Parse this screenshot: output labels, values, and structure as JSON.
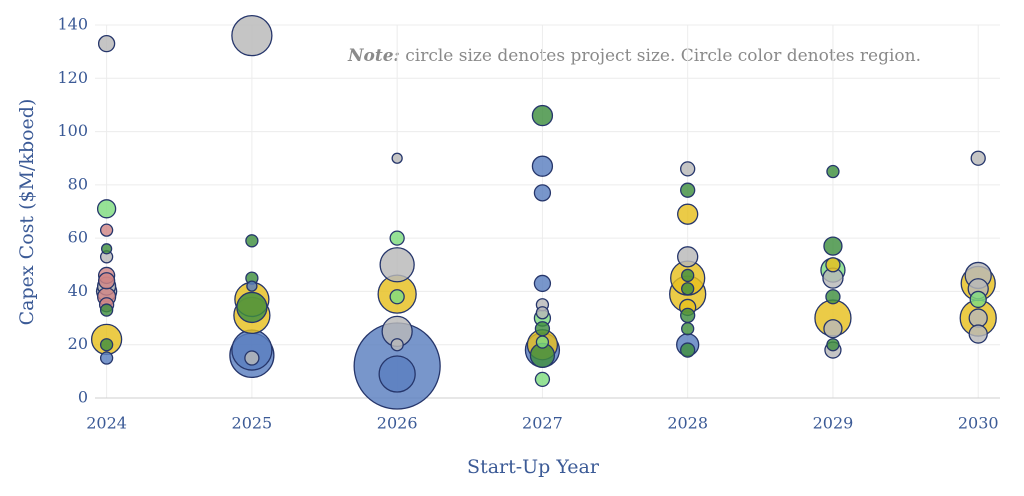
{
  "chart_data": {
    "type": "bubble",
    "note": {
      "label": "Note:",
      "text": " circle size denotes project size. Circle color denotes region."
    },
    "x_label": "Start-Up Year",
    "y_label": "Capex Cost ($M/kboed)",
    "xlim": [
      2023.92,
      2030.15
    ],
    "xticks": [
      2024,
      2025,
      2026,
      2027,
      2028,
      2029,
      2030
    ],
    "ylim": [
      0,
      140
    ],
    "yticks": [
      0,
      20,
      40,
      60,
      80,
      100,
      120,
      140
    ],
    "grid": true,
    "series": [
      {
        "color": "#b8b8b8",
        "x": [
          2024,
          2024,
          2024,
          2024,
          2025,
          2025,
          2026,
          2026,
          2026,
          2026,
          2027,
          2027,
          2028,
          2028,
          2029,
          2029,
          2029,
          2030,
          2030,
          2030,
          2030,
          2030
        ],
        "values": [
          133,
          53,
          42,
          40,
          136,
          15,
          90,
          50,
          25,
          20,
          35,
          32,
          86,
          53,
          45,
          26,
          18,
          90,
          46,
          41,
          30,
          24
        ],
        "sizes": [
          8,
          6,
          9,
          10,
          20,
          7,
          5,
          17,
          15,
          6,
          6,
          6,
          7,
          10,
          10,
          9,
          8,
          7,
          13,
          10,
          9,
          9
        ]
      },
      {
        "color": "#3f8f3f",
        "x": [
          2024,
          2024,
          2024,
          2025,
          2025,
          2025,
          2027,
          2027,
          2027,
          2028,
          2028,
          2028,
          2028,
          2028,
          2028,
          2029,
          2029,
          2029,
          2029
        ],
        "values": [
          56,
          33,
          20,
          59,
          45,
          34,
          106,
          26,
          16,
          78,
          46,
          41,
          31,
          26,
          18,
          85,
          57,
          38,
          20
        ],
        "sizes": [
          5,
          6,
          6,
          6,
          6,
          15,
          10,
          7,
          12,
          7,
          6,
          6,
          7,
          6,
          7,
          6,
          9,
          7,
          6
        ]
      },
      {
        "color": "#7fdc7f",
        "x": [
          2024,
          2026,
          2026,
          2027,
          2027,
          2027,
          2029,
          2030
        ],
        "values": [
          71,
          60,
          38,
          30,
          21,
          7,
          48,
          37
        ],
        "sizes": [
          9,
          7,
          7,
          8,
          6,
          7,
          12,
          8
        ]
      },
      {
        "color": "#5a7fc0",
        "x": [
          2024,
          2025,
          2025,
          2025,
          2026,
          2026,
          2027,
          2027,
          2027,
          2027,
          2028
        ],
        "values": [
          15,
          42,
          18,
          16,
          12,
          9,
          87,
          77,
          43,
          18,
          20
        ],
        "sizes": [
          6,
          5,
          20,
          22,
          43,
          18,
          10,
          8,
          8,
          17,
          11
        ]
      },
      {
        "color": "#e6bf1e",
        "x": [
          2024,
          2025,
          2025,
          2026,
          2027,
          2028,
          2028,
          2028,
          2028,
          2029,
          2029,
          2030,
          2030
        ],
        "values": [
          22,
          37,
          31,
          39,
          20,
          69,
          45,
          39,
          34,
          50,
          30,
          43,
          30
        ],
        "sizes": [
          15,
          17,
          18,
          19,
          15,
          10,
          17,
          18,
          8,
          7,
          18,
          17,
          18
        ]
      },
      {
        "color": "#d08585",
        "x": [
          2024,
          2024,
          2024,
          2024,
          2024
        ],
        "values": [
          63,
          46,
          44,
          38,
          35
        ],
        "sizes": [
          6,
          8,
          8,
          9,
          7
        ]
      }
    ]
  }
}
